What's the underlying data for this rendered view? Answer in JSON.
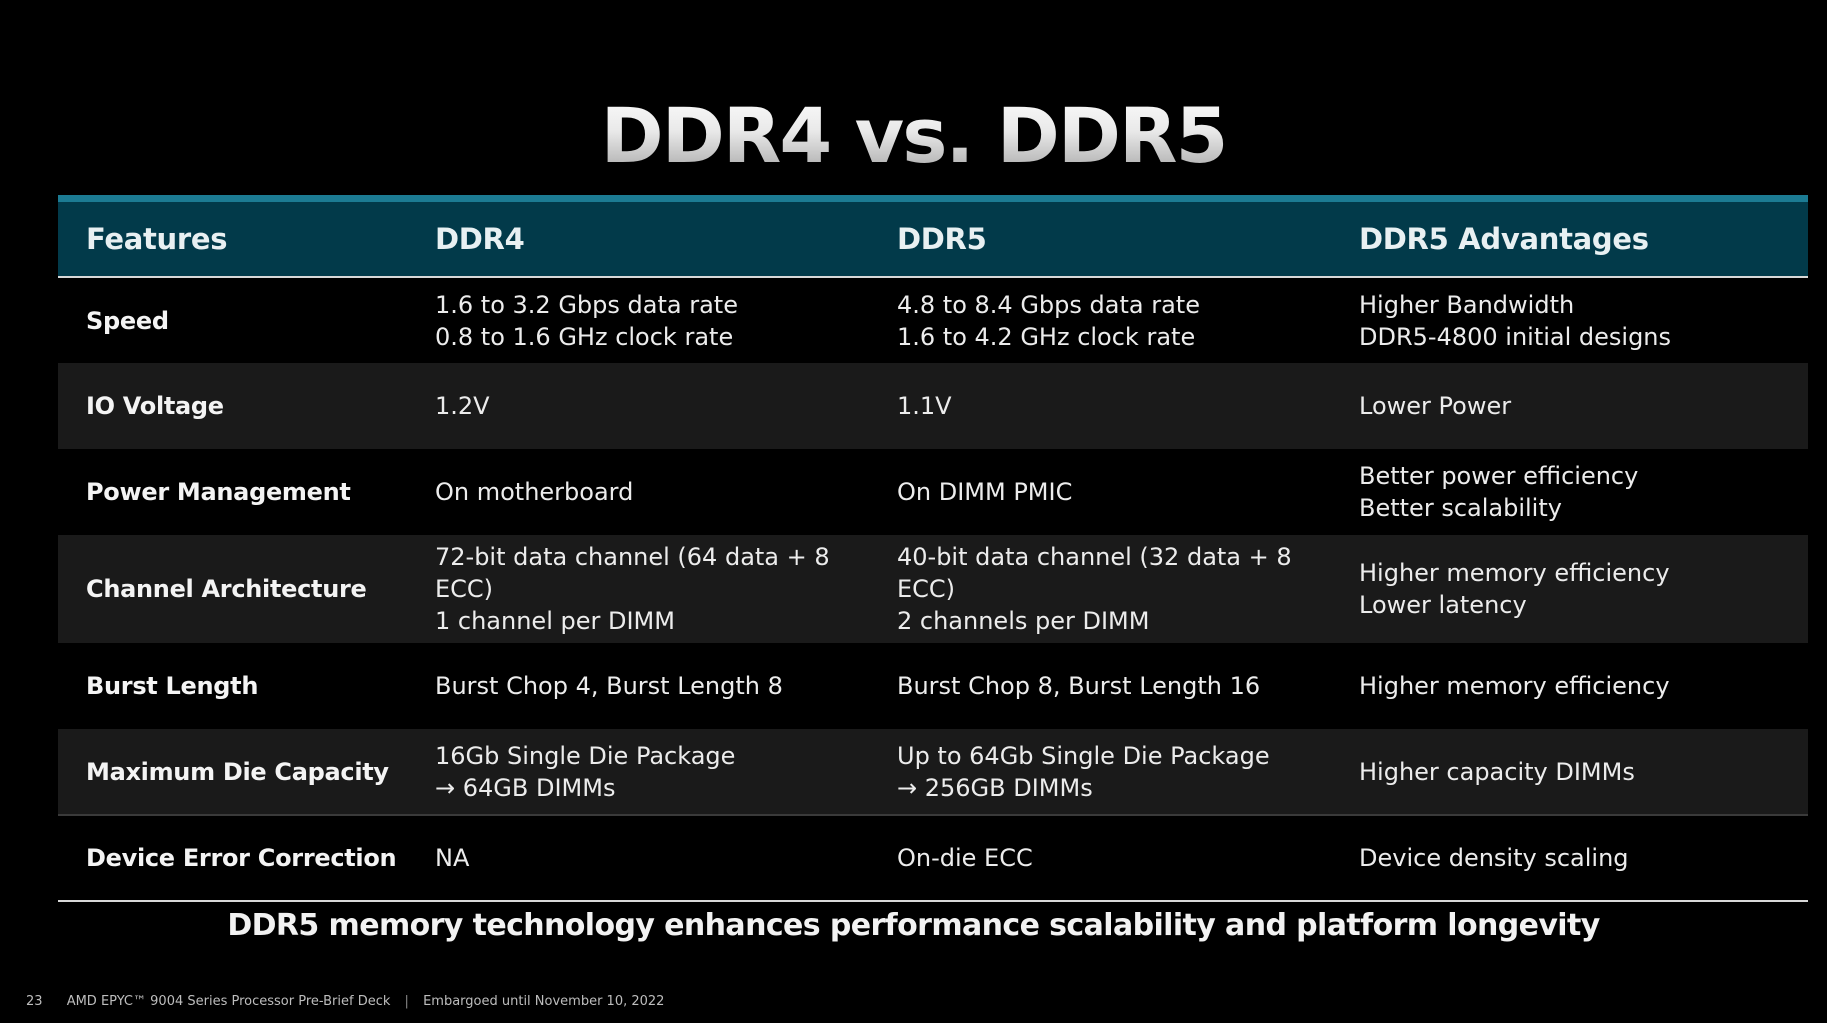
{
  "slide": {
    "title": "DDR4 vs. DDR5",
    "tagline": "DDR5 memory technology enhances performance scalability and platform longevity"
  },
  "table": {
    "headers": [
      "Features",
      "DDR4",
      "DDR5",
      "DDR5 Advantages"
    ],
    "rows": [
      {
        "feature": "Speed",
        "ddr4": [
          "1.6 to 3.2 Gbps data rate",
          "0.8 to 1.6 GHz clock rate"
        ],
        "ddr5": [
          "4.8 to 8.4 Gbps data rate",
          "1.6 to 4.2 GHz clock rate"
        ],
        "advantages": [
          "Higher Bandwidth",
          "DDR5-4800 initial designs"
        ]
      },
      {
        "feature": "IO Voltage",
        "ddr4": [
          "1.2V"
        ],
        "ddr5": [
          "1.1V"
        ],
        "advantages": [
          "Lower Power"
        ]
      },
      {
        "feature": "Power Management",
        "ddr4": [
          "On motherboard"
        ],
        "ddr5": [
          "On DIMM PMIC"
        ],
        "advantages": [
          "Better power efficiency",
          "Better scalability"
        ]
      },
      {
        "feature": "Channel Architecture",
        "ddr4": [
          "72-bit data channel (64 data + 8 ECC)",
          "1 channel per DIMM"
        ],
        "ddr5": [
          "40-bit data channel (32 data + 8 ECC)",
          "2 channels per DIMM"
        ],
        "advantages": [
          "Higher memory efficiency",
          "Lower latency"
        ]
      },
      {
        "feature": "Burst Length",
        "ddr4": [
          "Burst Chop 4, Burst Length 8"
        ],
        "ddr5": [
          "Burst Chop 8, Burst Length 16"
        ],
        "advantages": [
          "Higher memory efficiency"
        ]
      },
      {
        "feature": "Maximum Die Capacity",
        "ddr4": [
          "16Gb Single Die Package",
          "→ 64GB DIMMs"
        ],
        "ddr5": [
          "Up to 64Gb Single Die Package",
          "→ 256GB DIMMs"
        ],
        "advantages": [
          "Higher capacity DIMMs"
        ]
      },
      {
        "feature": "Device Error Correction",
        "ddr4": [
          "NA"
        ],
        "ddr5": [
          "On-die ECC"
        ],
        "advantages": [
          "Device density scaling"
        ]
      }
    ]
  },
  "footer": {
    "page_number": "23",
    "deck_name": "AMD EPYC™ 9004 Series Processor Pre-Brief Deck",
    "separator": "|",
    "embargo": "Embargoed until November 10, 2022"
  },
  "colors": {
    "background": "#000000",
    "header_bg": "#023a4a",
    "accent_bar": "#1c7b93",
    "row_alt": "#1a1a1a"
  }
}
